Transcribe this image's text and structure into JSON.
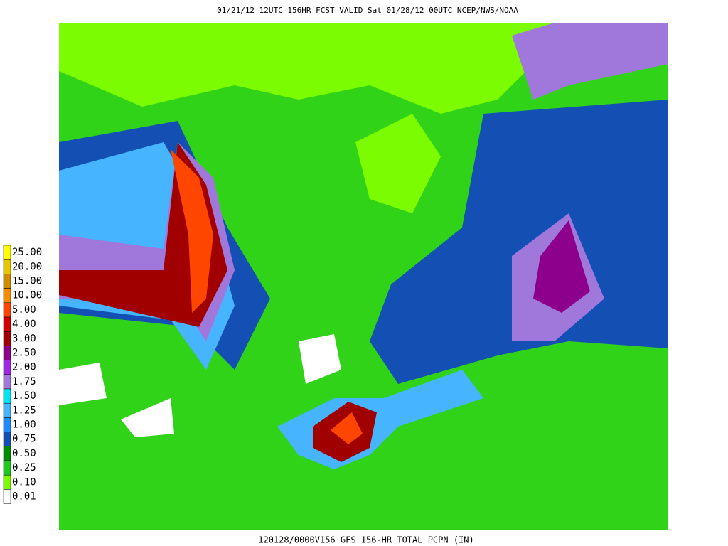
{
  "header": {
    "title": "01/21/12 12UTC  156HR  FCST VALID Sat 01/28/12 00UTC  NCEP/NWS/NOAA"
  },
  "footer": {
    "caption": "120128/0000V156 GFS 156-HR TOTAL PCPN (IN)"
  },
  "legend": [
    {
      "label": "25.00",
      "color": "#ffff00"
    },
    {
      "label": "20.00",
      "color": "#e6c800"
    },
    {
      "label": "15.00",
      "color": "#d08c00"
    },
    {
      "label": "10.00",
      "color": "#ff8c00"
    },
    {
      "label": "5.00",
      "color": "#ff4600"
    },
    {
      "label": "4.00",
      "color": "#d20000"
    },
    {
      "label": "3.00",
      "color": "#a00000"
    },
    {
      "label": "2.50",
      "color": "#8c008c"
    },
    {
      "label": "2.00",
      "color": "#a028e6"
    },
    {
      "label": "1.75",
      "color": "#a078dc"
    },
    {
      "label": "1.50",
      "color": "#00e6f0"
    },
    {
      "label": "1.25",
      "color": "#46b4ff"
    },
    {
      "label": "1.00",
      "color": "#1e8cff"
    },
    {
      "label": "0.75",
      "color": "#1450b4"
    },
    {
      "label": "0.50",
      "color": "#008c00"
    },
    {
      "label": "0.25",
      "color": "#1ec81e"
    },
    {
      "label": "0.10",
      "color": "#7cfc00"
    },
    {
      "label": "0.01",
      "color": "#ffffff"
    }
  ]
}
